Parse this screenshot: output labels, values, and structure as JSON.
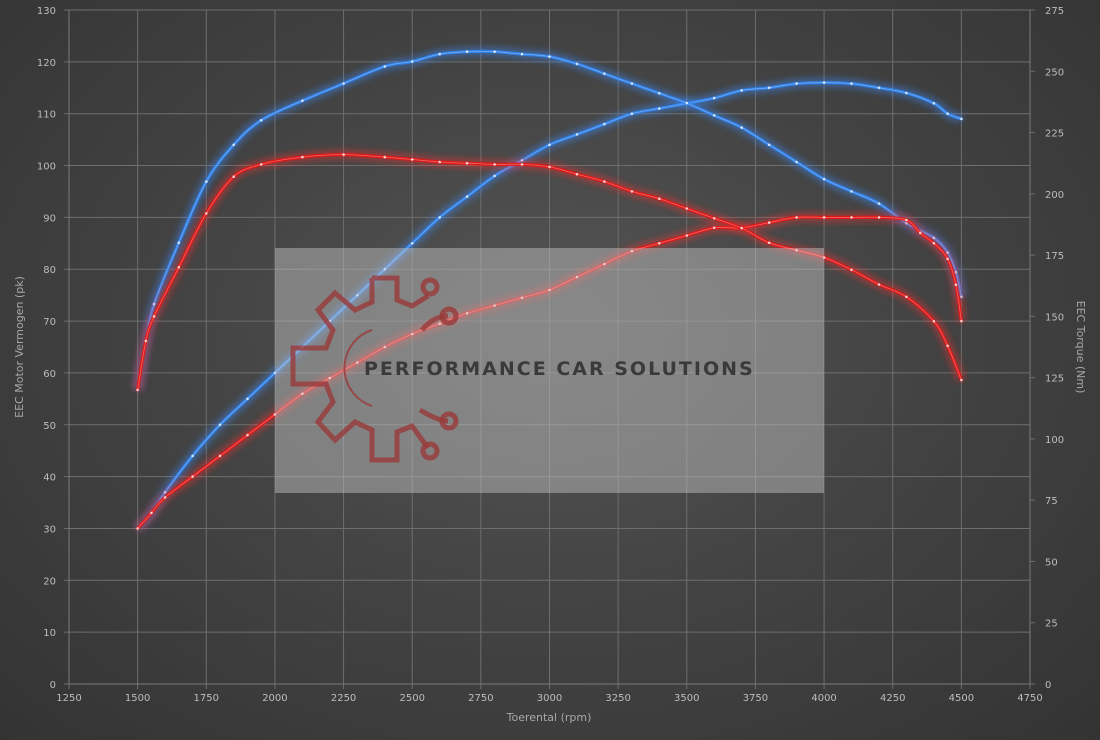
{
  "chart_data": {
    "type": "line",
    "title": "",
    "xlabel": "Toerental (rpm)",
    "ylabel_left": "EEC Motor Vermogen (pk)",
    "ylabel_right": "EEC Torque (Nm)",
    "xlim": [
      1250,
      4750
    ],
    "x_ticks": [
      1250,
      1500,
      1750,
      2000,
      2250,
      2500,
      2750,
      3000,
      3250,
      3500,
      3750,
      4000,
      4250,
      4500,
      4750
    ],
    "ylim_left": [
      0,
      130
    ],
    "y_ticks_left": [
      0,
      10,
      20,
      30,
      40,
      50,
      60,
      70,
      80,
      90,
      100,
      110,
      120,
      130
    ],
    "ylim_right": [
      0,
      275
    ],
    "y_ticks_right": [
      0,
      25,
      50,
      75,
      100,
      125,
      150,
      175,
      200,
      225,
      250,
      275
    ],
    "grid": true,
    "watermark": "PERFORMANCE CAR SOLUTIONS",
    "series": [
      {
        "axis": "left",
        "color": "#2f7fe6",
        "glow": "#3a8cff",
        "points": [
          [
            1500,
            30
          ],
          [
            1550,
            33
          ],
          [
            1600,
            37
          ],
          [
            1700,
            44
          ],
          [
            1800,
            50
          ],
          [
            1900,
            55
          ],
          [
            2000,
            60
          ],
          [
            2100,
            65
          ],
          [
            2200,
            70
          ],
          [
            2300,
            75
          ],
          [
            2400,
            80
          ],
          [
            2500,
            85
          ],
          [
            2600,
            90
          ],
          [
            2700,
            94
          ],
          [
            2800,
            98
          ],
          [
            2900,
            101
          ],
          [
            3000,
            104
          ],
          [
            3100,
            106
          ],
          [
            3200,
            108
          ],
          [
            3300,
            110
          ],
          [
            3400,
            111
          ],
          [
            3500,
            112
          ],
          [
            3600,
            113
          ],
          [
            3700,
            114.5
          ],
          [
            3800,
            115
          ],
          [
            3900,
            115.8
          ],
          [
            4000,
            116
          ],
          [
            4100,
            115.8
          ],
          [
            4200,
            115
          ],
          [
            4300,
            114
          ],
          [
            4400,
            112
          ],
          [
            4450,
            110
          ],
          [
            4500,
            109
          ]
        ]
      },
      {
        "axis": "right",
        "color": "#2f7fe6",
        "glow": "#3a8cff",
        "points": [
          [
            1500,
            120
          ],
          [
            1530,
            140
          ],
          [
            1560,
            155
          ],
          [
            1650,
            180
          ],
          [
            1750,
            205
          ],
          [
            1850,
            220
          ],
          [
            1950,
            230
          ],
          [
            2100,
            238
          ],
          [
            2250,
            245
          ],
          [
            2400,
            252
          ],
          [
            2500,
            254
          ],
          [
            2600,
            257
          ],
          [
            2700,
            258
          ],
          [
            2800,
            258
          ],
          [
            2900,
            257
          ],
          [
            3000,
            256
          ],
          [
            3100,
            253
          ],
          [
            3200,
            249
          ],
          [
            3300,
            245
          ],
          [
            3400,
            241
          ],
          [
            3500,
            237
          ],
          [
            3600,
            232
          ],
          [
            3700,
            227
          ],
          [
            3800,
            220
          ],
          [
            3900,
            213
          ],
          [
            4000,
            206
          ],
          [
            4100,
            201
          ],
          [
            4200,
            196
          ],
          [
            4300,
            188
          ],
          [
            4400,
            182
          ],
          [
            4450,
            176
          ],
          [
            4480,
            168
          ],
          [
            4500,
            158
          ]
        ]
      },
      {
        "axis": "left",
        "color": "#e01818",
        "glow": "#ff2a2a",
        "points": [
          [
            1500,
            30
          ],
          [
            1550,
            33
          ],
          [
            1600,
            36
          ],
          [
            1700,
            40
          ],
          [
            1800,
            44
          ],
          [
            1900,
            48
          ],
          [
            2000,
            52
          ],
          [
            2100,
            56
          ],
          [
            2200,
            59
          ],
          [
            2300,
            62
          ],
          [
            2400,
            65
          ],
          [
            2500,
            67.5
          ],
          [
            2600,
            69.5
          ],
          [
            2700,
            71.5
          ],
          [
            2800,
            73
          ],
          [
            2900,
            74.5
          ],
          [
            3000,
            76
          ],
          [
            3100,
            78.5
          ],
          [
            3200,
            81
          ],
          [
            3300,
            83.5
          ],
          [
            3400,
            85
          ],
          [
            3500,
            86.5
          ],
          [
            3600,
            88
          ],
          [
            3700,
            88
          ],
          [
            3800,
            89
          ],
          [
            3900,
            90
          ],
          [
            4000,
            90
          ],
          [
            4100,
            90
          ],
          [
            4200,
            90
          ],
          [
            4300,
            89.5
          ],
          [
            4350,
            87
          ],
          [
            4400,
            85
          ],
          [
            4450,
            82
          ],
          [
            4480,
            77
          ],
          [
            4500,
            70
          ]
        ]
      },
      {
        "axis": "right",
        "color": "#e01818",
        "glow": "#ff2a2a",
        "points": [
          [
            1500,
            120
          ],
          [
            1530,
            140
          ],
          [
            1560,
            150
          ],
          [
            1650,
            170
          ],
          [
            1750,
            192
          ],
          [
            1850,
            207
          ],
          [
            1950,
            212
          ],
          [
            2100,
            215
          ],
          [
            2250,
            216
          ],
          [
            2400,
            215
          ],
          [
            2500,
            214
          ],
          [
            2600,
            213
          ],
          [
            2700,
            212.5
          ],
          [
            2800,
            212
          ],
          [
            2900,
            212
          ],
          [
            3000,
            211
          ],
          [
            3100,
            208
          ],
          [
            3200,
            205
          ],
          [
            3300,
            201
          ],
          [
            3400,
            198
          ],
          [
            3500,
            194
          ],
          [
            3600,
            190
          ],
          [
            3700,
            186
          ],
          [
            3800,
            180
          ],
          [
            3900,
            177
          ],
          [
            4000,
            174
          ],
          [
            4100,
            169
          ],
          [
            4200,
            163
          ],
          [
            4300,
            158
          ],
          [
            4400,
            148
          ],
          [
            4450,
            138
          ],
          [
            4500,
            124
          ]
        ]
      }
    ]
  }
}
